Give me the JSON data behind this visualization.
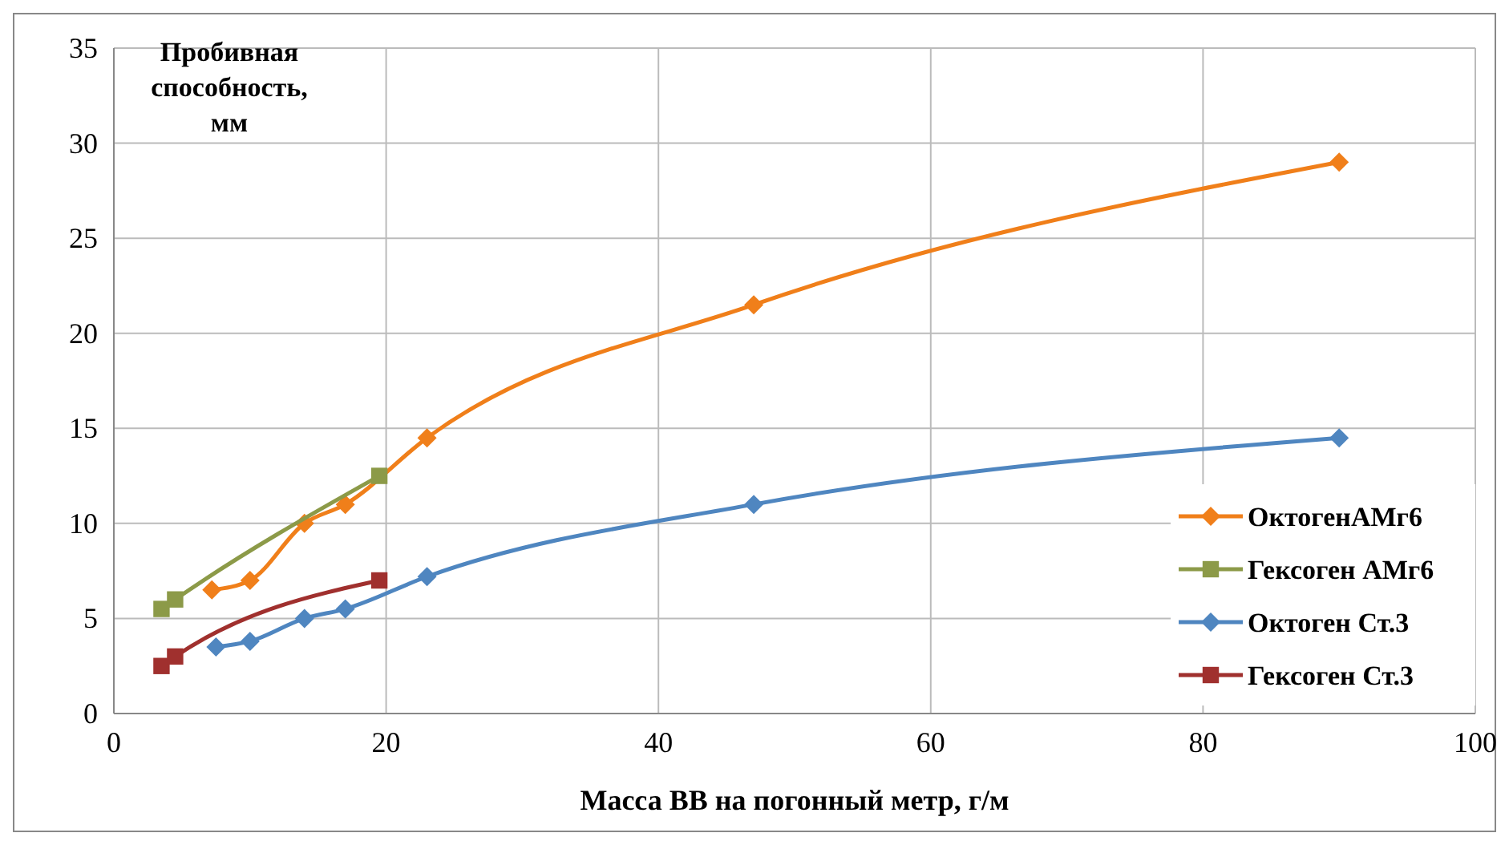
{
  "chart_data": {
    "type": "line",
    "ylabel": "Пробивная способность, мм",
    "xlabel": "Масса ВВ на погонный метр, г/м",
    "xlim": [
      0,
      100
    ],
    "xticks": [
      0,
      20,
      40,
      60,
      80,
      100
    ],
    "ylim": [
      0,
      35
    ],
    "yticks": [
      0,
      5,
      10,
      15,
      20,
      25,
      30,
      35
    ],
    "grid": true,
    "legend": "right",
    "line_style": "solid",
    "series": [
      {
        "name": "ОктогенАМг6",
        "color": "#f07f1a",
        "marker": "diamond",
        "x": [
          7.2,
          10,
          14,
          17,
          23,
          47,
          90
        ],
        "values": [
          6.5,
          7,
          10,
          11,
          14.5,
          21.5,
          29
        ]
      },
      {
        "name": "Гексоген АМг6",
        "color": "#8c9a48",
        "marker": "square",
        "x": [
          3.5,
          4.5,
          19.5
        ],
        "values": [
          5.5,
          6,
          12.5
        ]
      },
      {
        "name": "Октоген Ст.3",
        "color": "#4f86c0",
        "marker": "diamond",
        "x": [
          7.5,
          10,
          14,
          17,
          23,
          47,
          90
        ],
        "values": [
          3.5,
          3.8,
          5,
          5.5,
          7.2,
          11,
          14.5
        ]
      },
      {
        "name": "Гексоген Ст.3",
        "color": "#a0302e",
        "marker": "square",
        "x": [
          3.5,
          4.5,
          19.5
        ],
        "values": [
          2.5,
          3,
          7
        ]
      }
    ]
  }
}
